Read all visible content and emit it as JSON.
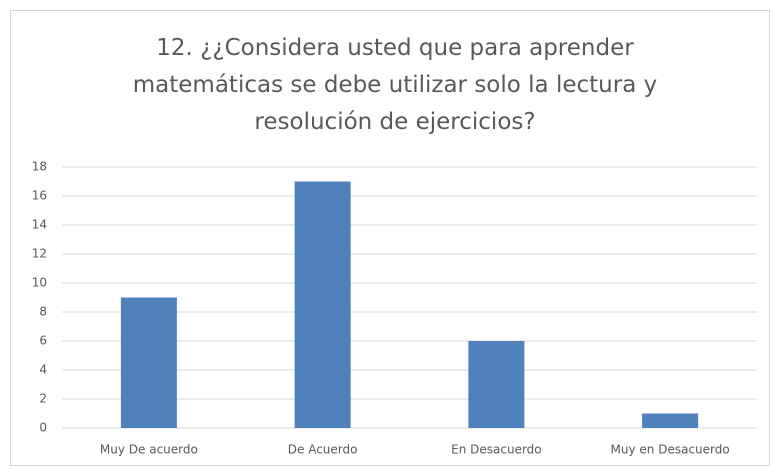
{
  "chart_data": {
    "type": "bar",
    "title": "12. ¿¿Considera usted que para aprender matemáticas se debe utilizar solo la lectura y resolución de ejercicios?",
    "categories": [
      "Muy De acuerdo",
      "De Acuerdo",
      "En Desacuerdo",
      "Muy en Desacuerdo"
    ],
    "values": [
      9,
      17,
      6,
      1
    ],
    "color": "#4f81bd",
    "ylim": [
      0,
      18
    ],
    "yticks": [
      0,
      2,
      4,
      6,
      8,
      10,
      12,
      14,
      16,
      18
    ],
    "grid": true
  }
}
